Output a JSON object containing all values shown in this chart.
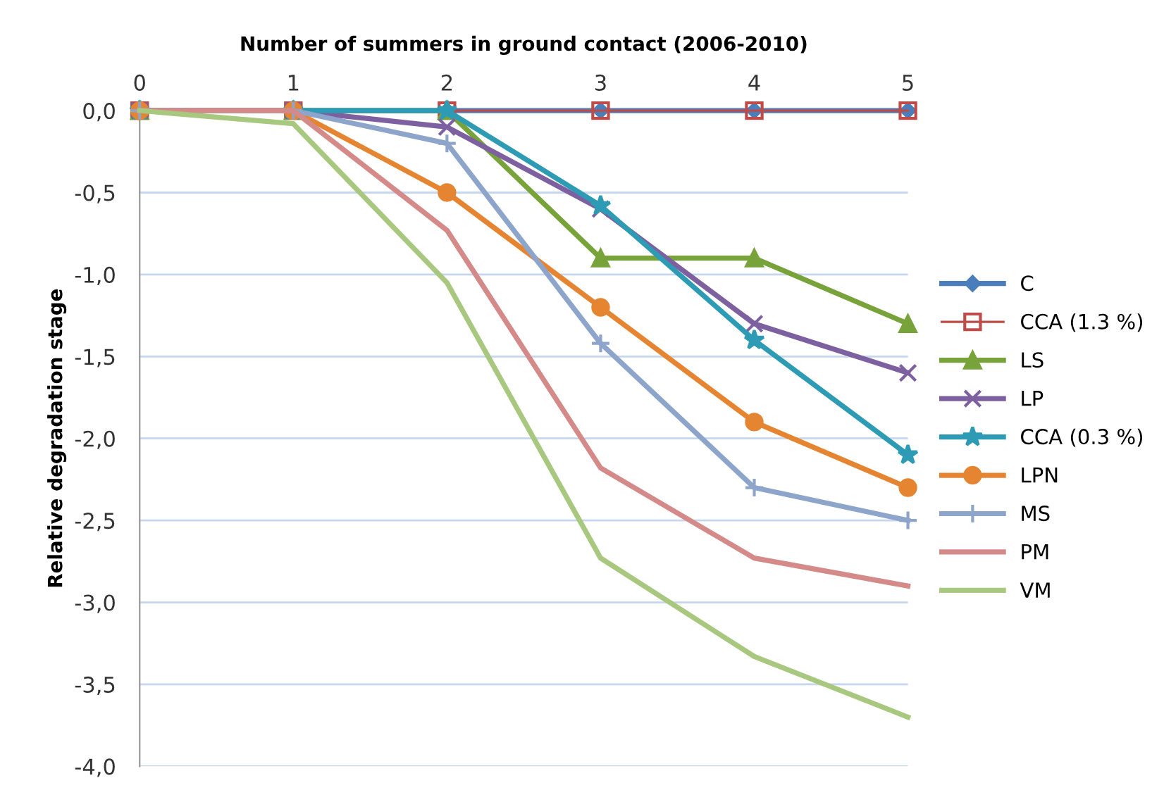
{
  "chart_data": {
    "type": "line",
    "xlabel": "Number of summers in ground contact (2006-2010)",
    "ylabel": "Relative degradation stage",
    "x": [
      0,
      1,
      2,
      3,
      4,
      5
    ],
    "xlim": [
      0,
      5
    ],
    "xticks": [
      0,
      1,
      2,
      3,
      4,
      5
    ],
    "ylim": [
      -4,
      0
    ],
    "yticks": [
      {
        "value": 0,
        "label": "0,0"
      },
      {
        "value": -0.5,
        "label": "-0,5"
      },
      {
        "value": -1,
        "label": "-1,0"
      },
      {
        "value": -1.5,
        "label": "-1,5"
      },
      {
        "value": -2,
        "label": "-2,0"
      },
      {
        "value": -2.5,
        "label": "-2,5"
      },
      {
        "value": -3,
        "label": "-3,0"
      },
      {
        "value": -3.5,
        "label": "-3,5"
      },
      {
        "value": -4,
        "label": "-4,0"
      }
    ],
    "grid": "y",
    "legend": "right",
    "series": [
      {
        "name": "C",
        "color": "#4a7ebb",
        "marker": "diamond",
        "values": [
          0,
          0,
          0,
          0,
          0,
          0
        ]
      },
      {
        "name": "CCA (1.3 %)",
        "color": "#be4b48",
        "marker": "square",
        "values": [
          0,
          0,
          0,
          0,
          0,
          0
        ]
      },
      {
        "name": "LS",
        "color": "#77a33a",
        "marker": "triangle",
        "values": [
          0,
          0,
          0,
          -0.9,
          -0.9,
          -1.3
        ]
      },
      {
        "name": "LP",
        "color": "#7d60a0",
        "marker": "cross",
        "values": [
          0,
          0,
          -0.1,
          -0.6,
          -1.3,
          -1.6
        ]
      },
      {
        "name": "CCA (0.3 %)",
        "color": "#2e9bb5",
        "marker": "star",
        "values": [
          0,
          0,
          0,
          -0.58,
          -1.4,
          -2.1
        ]
      },
      {
        "name": "LPN",
        "color": "#e58532",
        "marker": "circle",
        "values": [
          0,
          0,
          -0.5,
          -1.2,
          -1.9,
          -2.3
        ]
      },
      {
        "name": "MS",
        "color": "#8ea5cb",
        "marker": "plus",
        "values": [
          0,
          0,
          -0.2,
          -1.42,
          -2.3,
          -2.5
        ]
      },
      {
        "name": "PM",
        "color": "#d48a88",
        "marker": "none",
        "values": [
          0,
          0,
          -0.73,
          -2.18,
          -2.73,
          -2.9
        ]
      },
      {
        "name": "VM",
        "color": "#a9c87f",
        "marker": "none",
        "values": [
          0,
          -0.08,
          -1.05,
          -2.73,
          -3.33,
          -3.7
        ]
      }
    ]
  }
}
